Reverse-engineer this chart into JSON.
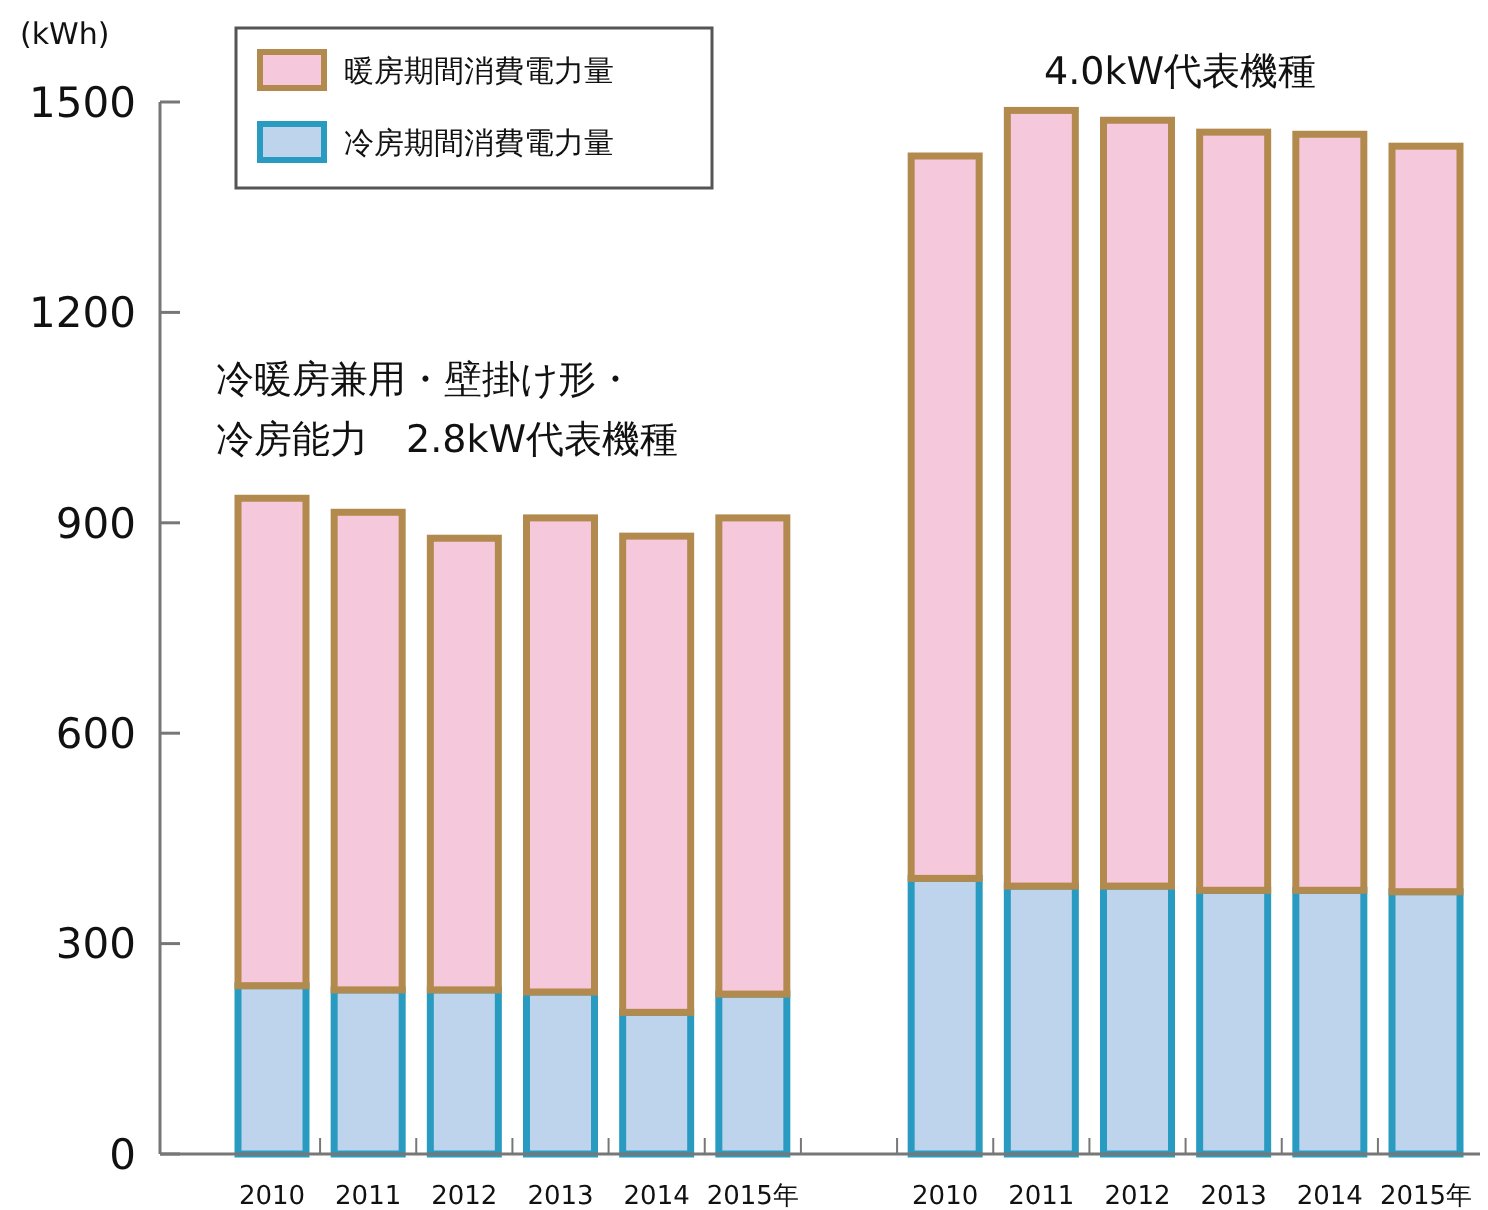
{
  "chart_data": {
    "type": "bar",
    "stacked": true,
    "ylabel": "(kWh)",
    "categories": [
      "2010",
      "2011",
      "2012",
      "2013",
      "2014",
      "2015年",
      null,
      "2010",
      "2011",
      "2012",
      "2013",
      "2014",
      "2015年"
    ],
    "series": [
      {
        "name": "冷房期間消費電力量",
        "color": "#bdd4ec",
        "values": [
          240,
          234,
          234,
          231,
          202,
          228,
          null,
          393,
          382,
          382,
          376,
          376,
          374
        ]
      },
      {
        "name": "暖房期間消費電力量",
        "color": "#f5c8dc",
        "values": [
          695,
          681,
          644,
          676,
          679,
          679,
          null,
          1030,
          1106,
          1092,
          1081,
          1078,
          1063
        ]
      }
    ],
    "ylim": [
      0,
      1500
    ],
    "yticks": [
      0,
      300,
      600,
      900,
      1200,
      1500
    ],
    "grid": false,
    "legend": "top left",
    "annotations": [
      "冷暖房兼用・壁掛け形・",
      "冷房能力　2.8kW代表機種",
      "4.0kW代表機種"
    ]
  }
}
